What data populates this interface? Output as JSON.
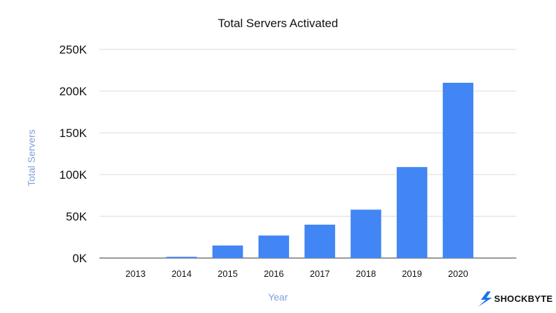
{
  "chart_data": {
    "type": "bar",
    "title": "Total Servers Activated",
    "xlabel": "Year",
    "ylabel": "Total Servers",
    "categories": [
      "2013",
      "2014",
      "2015",
      "2016",
      "2017",
      "2018",
      "2019",
      "2020"
    ],
    "values": [
      0,
      1500,
      15000,
      27000,
      40000,
      58000,
      109000,
      210000
    ],
    "ylim": [
      0,
      250000
    ],
    "yticks": [
      0,
      50000,
      100000,
      150000,
      200000,
      250000
    ],
    "ytick_labels": [
      "0K",
      "50K",
      "100K",
      "150K",
      "200K",
      "250K"
    ],
    "grid": true,
    "legend": "none",
    "colors": {
      "bar": "#4285f4",
      "grid": "#d9d9d9",
      "axis_label": "#7f9fd8",
      "baseline": "#333333"
    }
  },
  "brand": {
    "name": "SHOCKBYTE",
    "icon": "lightning-bolt-icon",
    "icon_color": "#1a73e8"
  }
}
